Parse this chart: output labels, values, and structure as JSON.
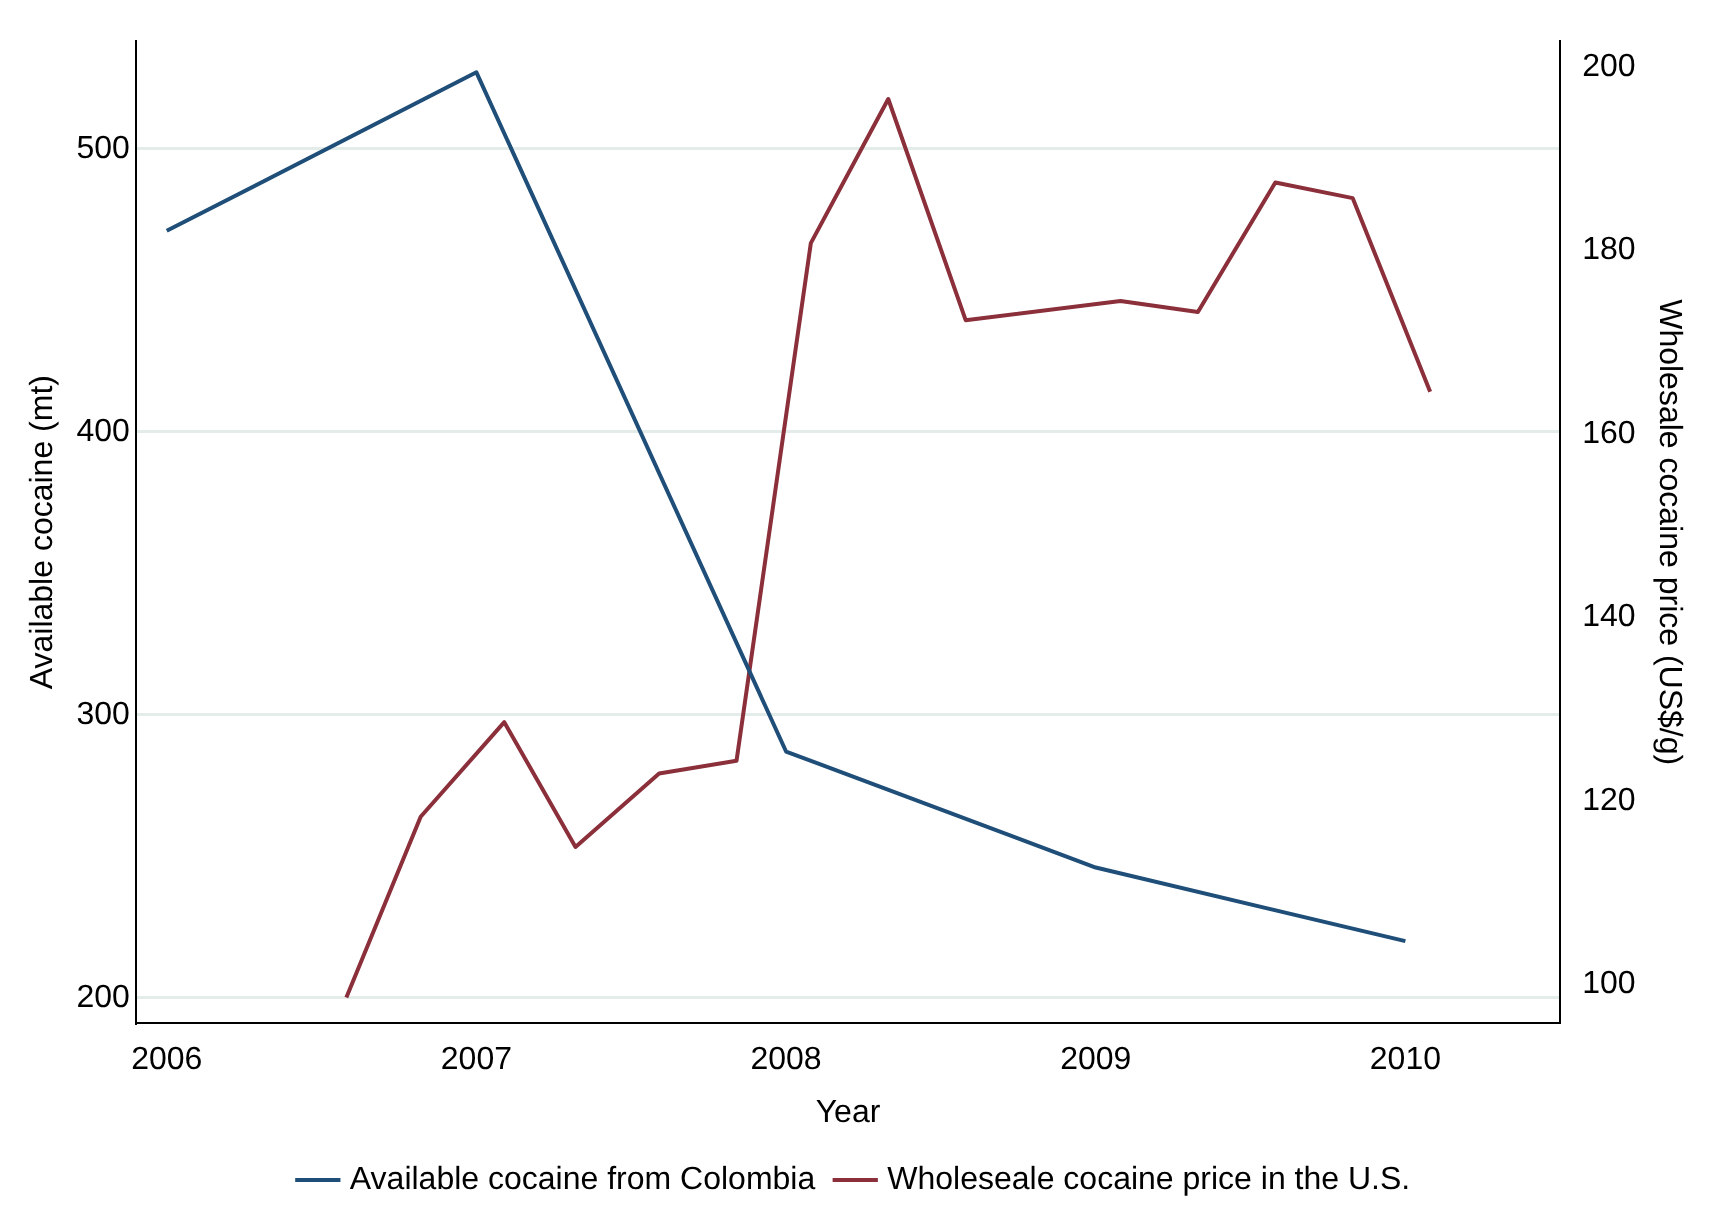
{
  "chart_data": {
    "type": "line",
    "xlabel": "Year",
    "ylabel": "Available cocaine (mt)",
    "y2label": "Wholesale cocaine price (US$/g)",
    "series": [
      {
        "name": "Available cocaine from Colombia",
        "color": "#1f4e79",
        "x": [
          2006,
          2007,
          2008,
          2009,
          2010
        ],
        "values": [
          471,
          527,
          287,
          246,
          220
        ]
      },
      {
        "name": "Wholeseale cocaine price in the U.S.",
        "color": "#8b2f3a",
        "axis": "y2",
        "x": [
          2006.58,
          2006.82,
          2007.09,
          2007.32,
          2007.59,
          2007.84,
          2008.08,
          2008.33,
          2008.58,
          2009.08,
          2009.33,
          2009.58,
          2009.83,
          2010.08
        ],
        "values": [
          98.6,
          118.3,
          128.6,
          115,
          123,
          124.4,
          180.8,
          196.5,
          172.4,
          174.5,
          173.3,
          187.4,
          185.7,
          164.6
        ]
      }
    ],
    "xlim": [
      2005.9,
      2010.5
    ],
    "xticks": [
      2006,
      2007,
      2008,
      2009,
      2010
    ],
    "ylim": [
      191,
      538
    ],
    "yticks": [
      200,
      300,
      400,
      500
    ],
    "y2lim": [
      95.8,
      202.8
    ],
    "y2ticks": [
      100,
      120,
      140,
      160,
      180,
      200
    ],
    "grid": "y",
    "legend": "bottom",
    "marker": "none",
    "line_style": "solid"
  }
}
